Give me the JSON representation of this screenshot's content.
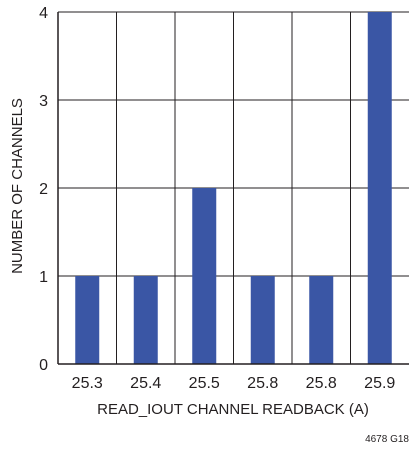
{
  "chart_data": {
    "type": "bar",
    "categories": [
      "25.3",
      "25.4",
      "25.5",
      "25.8",
      "25.8",
      "25.9"
    ],
    "values": [
      1,
      1,
      2,
      1,
      1,
      4
    ],
    "title": "",
    "xlabel": "READ_IOUT CHANNEL READBACK (A)",
    "ylabel": "NUMBER OF CHANNELS",
    "ylim": [
      0,
      4
    ],
    "yticks": [
      "0",
      "1",
      "2",
      "3",
      "4"
    ],
    "grid": true,
    "bar_color": "#3a56a5",
    "grid_color": "#231f20"
  },
  "figure_id": "4678 G18"
}
